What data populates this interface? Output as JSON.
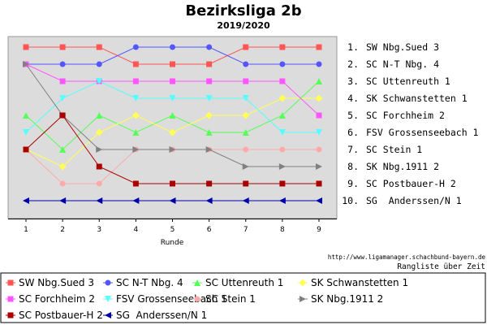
{
  "chart_data": {
    "type": "line",
    "title": "Bezirksliga 2b",
    "subtitle": "2019/2020",
    "xlabel": "Runde",
    "ylabel": "",
    "x": [
      1,
      2,
      3,
      4,
      5,
      6,
      7,
      8,
      9
    ],
    "ylim": [
      10,
      1
    ],
    "y_inverted": true,
    "grid": false,
    "legend_position": "bottom",
    "background_color": "#dcdcdc",
    "ranking_labels": [
      "1.  SW Nbg.Sued 3",
      "2.  SC N-T Nbg. 4",
      "3.  SC Uttenreuth 1",
      "4.  SK Schwanstetten 1",
      "5.  SC Forchheim 2",
      "6.  FSV Grossenseebach 1",
      "7.  SC Stein 1",
      "8.  SK Nbg.1911 2",
      "9.  SC Postbauer-H 2",
      "10.  SG  Anderssen/N 1"
    ],
    "credit": "http://www.ligamanager.schachbund-bayern.de",
    "caption": "Rangliste über Zeit",
    "series": [
      {
        "name": "SW Nbg.Sued 3",
        "color": "#ff5555",
        "marker": "square",
        "values": [
          1,
          1,
          1,
          2,
          2,
          2,
          1,
          1,
          1
        ]
      },
      {
        "name": "SC N-T Nbg. 4",
        "color": "#5555ff",
        "marker": "circle",
        "values": [
          2,
          2,
          2,
          1,
          1,
          1,
          2,
          2,
          2
        ]
      },
      {
        "name": "SC Uttenreuth 1",
        "color": "#55ff55",
        "marker": "triangle-up",
        "values": [
          5,
          7,
          5,
          6,
          5,
          6,
          6,
          5,
          3
        ]
      },
      {
        "name": "SK Schwanstetten 1",
        "color": "#ffff55",
        "marker": "diamond",
        "values": [
          7,
          8,
          6,
          5,
          6,
          5,
          5,
          4,
          4
        ]
      },
      {
        "name": "SC Forchheim 2",
        "color": "#ff55ff",
        "marker": "square",
        "values": [
          2,
          3,
          3,
          3,
          3,
          3,
          3,
          3,
          5
        ]
      },
      {
        "name": "FSV Grossenseebach 1",
        "color": "#55ffff",
        "marker": "triangle-down",
        "values": [
          6,
          4,
          3,
          4,
          4,
          4,
          4,
          6,
          6
        ]
      },
      {
        "name": "SC Stein 1",
        "color": "#ffaaaa",
        "marker": "circle",
        "values": [
          7,
          9,
          9,
          7,
          7,
          7,
          7,
          7,
          7
        ]
      },
      {
        "name": "SK Nbg.1911 2",
        "color": "#808080",
        "marker": "triangle-right",
        "values": [
          2,
          5,
          7,
          7,
          7,
          7,
          8,
          8,
          8
        ]
      },
      {
        "name": "SC Postbauer-H 2",
        "color": "#aa0000",
        "marker": "square",
        "values": [
          7,
          5,
          8,
          9,
          9,
          9,
          9,
          9,
          9
        ]
      },
      {
        "name": "SG  Anderssen/N 1",
        "color": "#0000aa",
        "marker": "triangle-left",
        "values": [
          10,
          10,
          10,
          10,
          10,
          10,
          10,
          10,
          10
        ]
      }
    ]
  }
}
